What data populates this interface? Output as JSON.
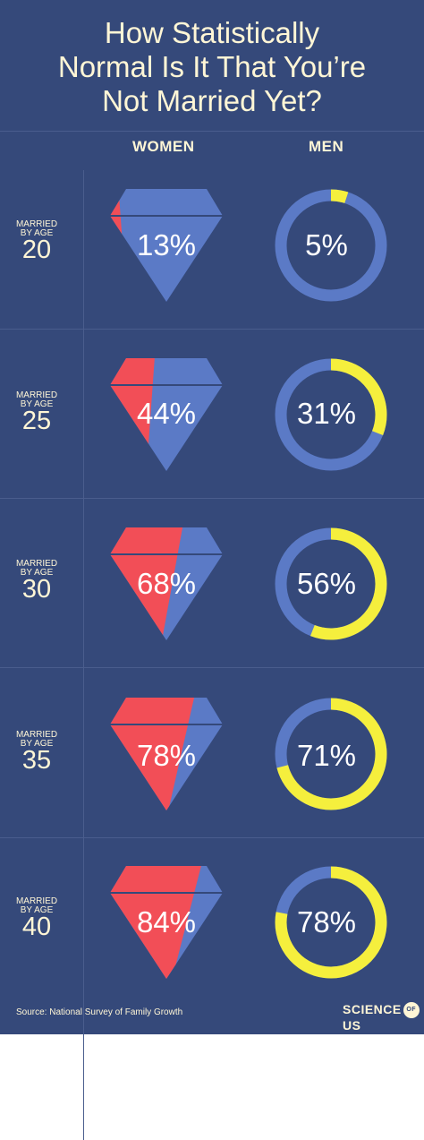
{
  "title_lines": [
    "How Statistically",
    "Normal Is It That You’re",
    "Not Married Yet?"
  ],
  "column_headers": {
    "women": "WOMEN",
    "men": "MEN"
  },
  "row_label_prefix": "MARRIED",
  "row_label_by_age": "BY AGE",
  "rows": [
    {
      "age": "20",
      "women_label": "13%",
      "men_label": "5%"
    },
    {
      "age": "25",
      "women_label": "44%",
      "men_label": "31%"
    },
    {
      "age": "30",
      "women_label": "68%",
      "men_label": "56%"
    },
    {
      "age": "35",
      "women_label": "78%",
      "men_label": "71%"
    },
    {
      "age": "40",
      "women_label": "84%",
      "men_label": "78%"
    }
  ],
  "source": "Source: National Survey of Family Growth",
  "logo": {
    "left": "SCIENCE",
    "mid": "OF",
    "right": "US"
  },
  "colors": {
    "background": "#35497a",
    "women_fill": "#f24e57",
    "women_base": "#5b7ac6",
    "men_fill": "#f5ef3d",
    "men_base": "#5b7ac6",
    "text": "#fff6d6"
  },
  "chart_data": {
    "type": "bar",
    "categories": [
      "20",
      "25",
      "30",
      "35",
      "40"
    ],
    "series": [
      {
        "name": "WOMEN",
        "values": [
          13,
          44,
          68,
          78,
          84
        ]
      },
      {
        "name": "MEN",
        "values": [
          5,
          31,
          56,
          71,
          78
        ]
      }
    ],
    "title": "How Statistically Normal Is It That You’re Not Married Yet?",
    "ylim": [
      0,
      100
    ]
  }
}
